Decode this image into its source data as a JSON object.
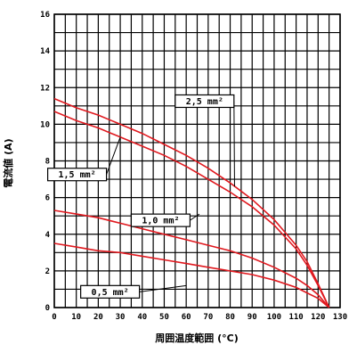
{
  "chart_data": {
    "type": "line",
    "xlabel": "周囲温度範囲 (°C)",
    "ylabel": "電流値 (A)",
    "xlim": [
      0,
      130
    ],
    "ylim": [
      0,
      16
    ],
    "x_ticks": [
      0,
      10,
      20,
      30,
      40,
      50,
      60,
      70,
      80,
      90,
      100,
      110,
      120,
      130
    ],
    "y_ticks": [
      0,
      2,
      4,
      6,
      8,
      10,
      12,
      14,
      16
    ],
    "grid": true,
    "series": [
      {
        "name": "2,5 mm²",
        "x": [
          0,
          10,
          20,
          30,
          40,
          50,
          60,
          70,
          80,
          90,
          100,
          110,
          115,
          120,
          125
        ],
        "y": [
          11.4,
          10.9,
          10.5,
          10.0,
          9.5,
          8.9,
          8.3,
          7.6,
          6.8,
          5.9,
          4.8,
          3.4,
          2.5,
          1.3,
          0
        ]
      },
      {
        "name": "1,5 mm²",
        "x": [
          0,
          10,
          20,
          30,
          40,
          50,
          60,
          70,
          80,
          90,
          100,
          110,
          115,
          120,
          125
        ],
        "y": [
          10.7,
          10.2,
          9.8,
          9.3,
          8.8,
          8.3,
          7.7,
          7.0,
          6.3,
          5.5,
          4.5,
          3.2,
          2.3,
          1.2,
          0
        ]
      },
      {
        "name": "1,0 mm²",
        "x": [
          0,
          10,
          20,
          30,
          40,
          50,
          60,
          70,
          80,
          90,
          100,
          110,
          115,
          120,
          125
        ],
        "y": [
          5.3,
          5.1,
          4.9,
          4.6,
          4.3,
          4.0,
          3.7,
          3.4,
          3.1,
          2.7,
          2.2,
          1.6,
          1.2,
          0.7,
          0
        ]
      },
      {
        "name": "0,5 mm²",
        "x": [
          0,
          10,
          20,
          30,
          40,
          50,
          60,
          70,
          80,
          90,
          100,
          110,
          115,
          120,
          125
        ],
        "y": [
          3.5,
          3.3,
          3.1,
          3.0,
          2.8,
          2.6,
          2.4,
          2.2,
          2.0,
          1.8,
          1.5,
          1.1,
          0.8,
          0.5,
          0
        ]
      }
    ],
    "annotations": [
      {
        "text": "2,5 mm²",
        "series": 0,
        "box_at": [
          55,
          11.6
        ],
        "points_to": [
          82,
          6.6
        ]
      },
      {
        "text": "1,5 mm²",
        "series": 1,
        "box_at": [
          -3,
          7.6
        ],
        "points_to": [
          30,
          9.3
        ]
      },
      {
        "text": "1,0 mm²",
        "series": 2,
        "box_at": [
          35,
          5.1
        ],
        "points_to": [
          66,
          5.1
        ]
      },
      {
        "text": "0,5 mm²",
        "series": 3,
        "box_at": [
          12,
          1.2
        ],
        "points_to": [
          60,
          1.2
        ]
      }
    ],
    "colors": {
      "series": "#e0191f",
      "grid": "#000000",
      "background": "#ffffff"
    }
  }
}
